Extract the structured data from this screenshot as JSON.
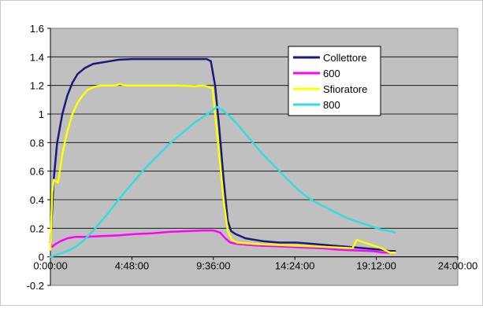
{
  "chart_data": {
    "type": "line",
    "title": "",
    "xlabel": "",
    "ylabel": "",
    "x_unit": "hours",
    "xlim": [
      0,
      24
    ],
    "ylim": [
      -0.2,
      1.6
    ],
    "x_ticks": [
      {
        "value": 0,
        "label": "0:00:00"
      },
      {
        "value": 4.8,
        "label": "4:48:00"
      },
      {
        "value": 9.6,
        "label": "9:36:00"
      },
      {
        "value": 14.4,
        "label": "14:24:00"
      },
      {
        "value": 19.2,
        "label": "19:12:00"
      },
      {
        "value": 24,
        "label": "24:00:00"
      }
    ],
    "y_ticks": [
      {
        "value": -0.2,
        "label": "-0.2"
      },
      {
        "value": 0,
        "label": "0"
      },
      {
        "value": 0.2,
        "label": "0.2"
      },
      {
        "value": 0.4,
        "label": "0.4"
      },
      {
        "value": 0.6,
        "label": "0.6"
      },
      {
        "value": 0.8,
        "label": "0.8"
      },
      {
        "value": 1,
        "label": "1"
      },
      {
        "value": 1.2,
        "label": "1.2"
      },
      {
        "value": 1.4,
        "label": "1.4"
      },
      {
        "value": 1.6,
        "label": "1.6"
      }
    ],
    "grid": "horizontal",
    "plot_background": "#c0c0c0",
    "legend_position": "top-right",
    "series": [
      {
        "name": "Collettore",
        "color": "#1a1a7a",
        "points": [
          [
            0,
            0.1
          ],
          [
            0.2,
            0.55
          ],
          [
            0.4,
            0.8
          ],
          [
            0.7,
            1.0
          ],
          [
            1.0,
            1.13
          ],
          [
            1.3,
            1.22
          ],
          [
            1.6,
            1.28
          ],
          [
            2.0,
            1.32
          ],
          [
            2.5,
            1.35
          ],
          [
            3.0,
            1.36
          ],
          [
            3.5,
            1.37
          ],
          [
            4.0,
            1.38
          ],
          [
            4.8,
            1.385
          ],
          [
            6.0,
            1.385
          ],
          [
            7.2,
            1.385
          ],
          [
            8.4,
            1.385
          ],
          [
            9.2,
            1.385
          ],
          [
            9.45,
            1.37
          ],
          [
            9.7,
            1.2
          ],
          [
            9.95,
            0.9
          ],
          [
            10.2,
            0.55
          ],
          [
            10.45,
            0.25
          ],
          [
            10.65,
            0.18
          ],
          [
            10.9,
            0.16
          ],
          [
            11.5,
            0.13
          ],
          [
            12.5,
            0.11
          ],
          [
            13.5,
            0.1
          ],
          [
            14.5,
            0.1
          ],
          [
            15.5,
            0.09
          ],
          [
            16.5,
            0.08
          ],
          [
            17.5,
            0.07
          ],
          [
            18.5,
            0.06
          ],
          [
            19.5,
            0.05
          ],
          [
            20.0,
            0.04
          ],
          [
            20.3,
            0.04
          ]
        ]
      },
      {
        "name": "600",
        "color": "#ff00ff",
        "points": [
          [
            0,
            0.1
          ],
          [
            0.1,
            0.07
          ],
          [
            0.3,
            0.09
          ],
          [
            0.6,
            0.11
          ],
          [
            1.0,
            0.13
          ],
          [
            1.5,
            0.14
          ],
          [
            2.0,
            0.14
          ],
          [
            3.0,
            0.145
          ],
          [
            4.0,
            0.15
          ],
          [
            5.0,
            0.16
          ],
          [
            6.0,
            0.165
          ],
          [
            7.0,
            0.175
          ],
          [
            8.0,
            0.18
          ],
          [
            9.0,
            0.185
          ],
          [
            9.6,
            0.185
          ],
          [
            10.0,
            0.17
          ],
          [
            10.3,
            0.13
          ],
          [
            10.6,
            0.1
          ],
          [
            11.0,
            0.09
          ],
          [
            12.0,
            0.08
          ],
          [
            13.0,
            0.075
          ],
          [
            14.0,
            0.07
          ],
          [
            15.0,
            0.065
          ],
          [
            16.0,
            0.06
          ],
          [
            17.0,
            0.05
          ],
          [
            18.0,
            0.045
          ],
          [
            19.0,
            0.04
          ],
          [
            19.6,
            0.03
          ],
          [
            20.0,
            0.03
          ]
        ]
      },
      {
        "name": "Sfioratore",
        "color": "#ffff00",
        "points": [
          [
            0,
            0.05
          ],
          [
            0.1,
            0.45
          ],
          [
            0.2,
            0.54
          ],
          [
            0.45,
            0.52
          ],
          [
            0.7,
            0.72
          ],
          [
            1.0,
            0.88
          ],
          [
            1.3,
            1.0
          ],
          [
            1.6,
            1.08
          ],
          [
            1.9,
            1.13
          ],
          [
            2.2,
            1.17
          ],
          [
            2.6,
            1.19
          ],
          [
            3.0,
            1.2
          ],
          [
            3.8,
            1.2
          ],
          [
            4.1,
            1.21
          ],
          [
            4.4,
            1.2
          ],
          [
            6.0,
            1.2
          ],
          [
            7.5,
            1.2
          ],
          [
            8.5,
            1.195
          ],
          [
            9.0,
            1.2
          ],
          [
            9.3,
            1.19
          ],
          [
            9.55,
            1.18
          ],
          [
            9.75,
            0.95
          ],
          [
            10.0,
            0.65
          ],
          [
            10.2,
            0.4
          ],
          [
            10.45,
            0.18
          ],
          [
            10.7,
            0.12
          ],
          [
            11.0,
            0.1
          ],
          [
            12.0,
            0.09
          ],
          [
            13.0,
            0.085
          ],
          [
            14.0,
            0.08
          ],
          [
            15.0,
            0.075
          ],
          [
            16.0,
            0.07
          ],
          [
            17.0,
            0.065
          ],
          [
            17.8,
            0.06
          ],
          [
            18.05,
            0.12
          ],
          [
            18.5,
            0.1
          ],
          [
            19.0,
            0.08
          ],
          [
            19.5,
            0.06
          ],
          [
            20.0,
            0.03
          ],
          [
            20.3,
            0.03
          ]
        ]
      },
      {
        "name": "800",
        "color": "#33dddd",
        "points": [
          [
            0,
            0.0
          ],
          [
            0.5,
            0.02
          ],
          [
            1.0,
            0.04
          ],
          [
            1.5,
            0.07
          ],
          [
            2.0,
            0.12
          ],
          [
            2.5,
            0.18
          ],
          [
            3.0,
            0.25
          ],
          [
            3.5,
            0.32
          ],
          [
            4.0,
            0.4
          ],
          [
            4.5,
            0.47
          ],
          [
            5.0,
            0.54
          ],
          [
            5.5,
            0.61
          ],
          [
            6.0,
            0.67
          ],
          [
            6.5,
            0.73
          ],
          [
            7.0,
            0.79
          ],
          [
            7.5,
            0.84
          ],
          [
            8.0,
            0.89
          ],
          [
            8.5,
            0.94
          ],
          [
            9.0,
            0.98
          ],
          [
            9.5,
            1.02
          ],
          [
            9.8,
            1.05
          ],
          [
            10.1,
            1.03
          ],
          [
            10.6,
            0.98
          ],
          [
            11.0,
            0.93
          ],
          [
            11.5,
            0.86
          ],
          [
            12.0,
            0.79
          ],
          [
            12.5,
            0.72
          ],
          [
            13.0,
            0.66
          ],
          [
            13.5,
            0.6
          ],
          [
            14.0,
            0.54
          ],
          [
            14.5,
            0.48
          ],
          [
            15.0,
            0.43
          ],
          [
            15.5,
            0.39
          ],
          [
            16.0,
            0.36
          ],
          [
            16.5,
            0.33
          ],
          [
            17.0,
            0.3
          ],
          [
            17.5,
            0.27
          ],
          [
            18.0,
            0.25
          ],
          [
            18.5,
            0.23
          ],
          [
            19.0,
            0.21
          ],
          [
            19.5,
            0.19
          ],
          [
            20.0,
            0.18
          ],
          [
            20.3,
            0.17
          ]
        ]
      }
    ]
  }
}
